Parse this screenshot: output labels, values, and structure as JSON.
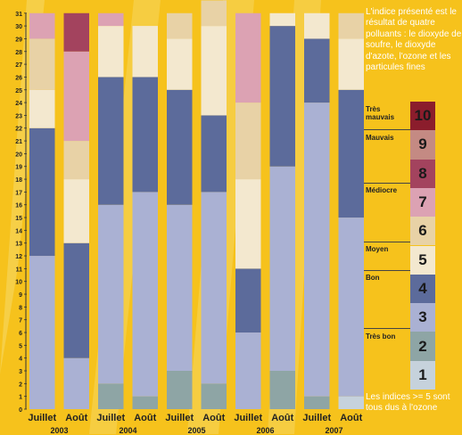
{
  "note_top": "L'indice présenté est le résultat de quatre polluants : le dioxyde de soufre, le dioxyde d'azote, l'ozone et les particules fines",
  "note_bottom": "Les indices >= 5 sont tous dus à l'ozone",
  "legend": {
    "categories": [
      "Très mauvais",
      "Mauvais",
      "Médiocre",
      "Moyen",
      "Bon",
      "Très bon"
    ],
    "levels": [
      {
        "value": "10",
        "color": "#8b1d2c"
      },
      {
        "value": "9",
        "color": "#c48a83"
      },
      {
        "value": "8",
        "color": "#a3435e"
      },
      {
        "value": "7",
        "color": "#dca2b3"
      },
      {
        "value": "6",
        "color": "#e8d2a6"
      },
      {
        "value": "5",
        "color": "#f3e8cf"
      },
      {
        "value": "4",
        "color": "#5c6b9b"
      },
      {
        "value": "3",
        "color": "#aab1d3"
      },
      {
        "value": "2",
        "color": "#8ea5a5"
      },
      {
        "value": "1",
        "color": "#c6d2dc"
      }
    ]
  },
  "years": [
    "2003",
    "2004",
    "2005",
    "2006",
    "2007"
  ],
  "chart_data": {
    "type": "bar",
    "stacked": true,
    "categories": [
      "Juillet",
      "Août",
      "Juillet",
      "Août",
      "Juillet",
      "Août",
      "Juillet",
      "Août",
      "Juillet",
      "Août"
    ],
    "ylim": [
      0,
      31
    ],
    "y_ticks": [
      0,
      1,
      2,
      3,
      4,
      5,
      6,
      7,
      8,
      9,
      10,
      11,
      12,
      13,
      14,
      15,
      16,
      17,
      18,
      19,
      20,
      21,
      22,
      23,
      24,
      25,
      26,
      27,
      28,
      29,
      30,
      31
    ],
    "series": [
      {
        "name": "1",
        "color": "#c6d2dc",
        "values": [
          0,
          0,
          0,
          0,
          0,
          0,
          0,
          0,
          0,
          1
        ]
      },
      {
        "name": "2",
        "color": "#8ea5a5",
        "values": [
          0,
          0,
          2,
          1,
          3,
          2,
          0,
          3,
          1,
          0
        ]
      },
      {
        "name": "3",
        "color": "#aab1d3",
        "values": [
          12,
          4,
          14,
          16,
          13,
          15,
          6,
          16,
          23,
          14
        ]
      },
      {
        "name": "4",
        "color": "#5c6b9b",
        "values": [
          10,
          9,
          10,
          9,
          9,
          6,
          5,
          11,
          5,
          10
        ]
      },
      {
        "name": "5",
        "color": "#f3e8cf",
        "values": [
          3,
          5,
          4,
          4,
          4,
          7,
          7,
          1,
          2,
          4
        ]
      },
      {
        "name": "6",
        "color": "#e8d2a6",
        "values": [
          4,
          3,
          0,
          0,
          2,
          2,
          6,
          0,
          0,
          2
        ]
      },
      {
        "name": "7",
        "color": "#dca2b3",
        "values": [
          2,
          7,
          1,
          0,
          0,
          0,
          7,
          0,
          0,
          0
        ]
      },
      {
        "name": "8",
        "color": "#a3435e",
        "values": [
          0,
          3,
          0,
          0,
          0,
          0,
          0,
          0,
          0,
          0
        ]
      }
    ]
  }
}
